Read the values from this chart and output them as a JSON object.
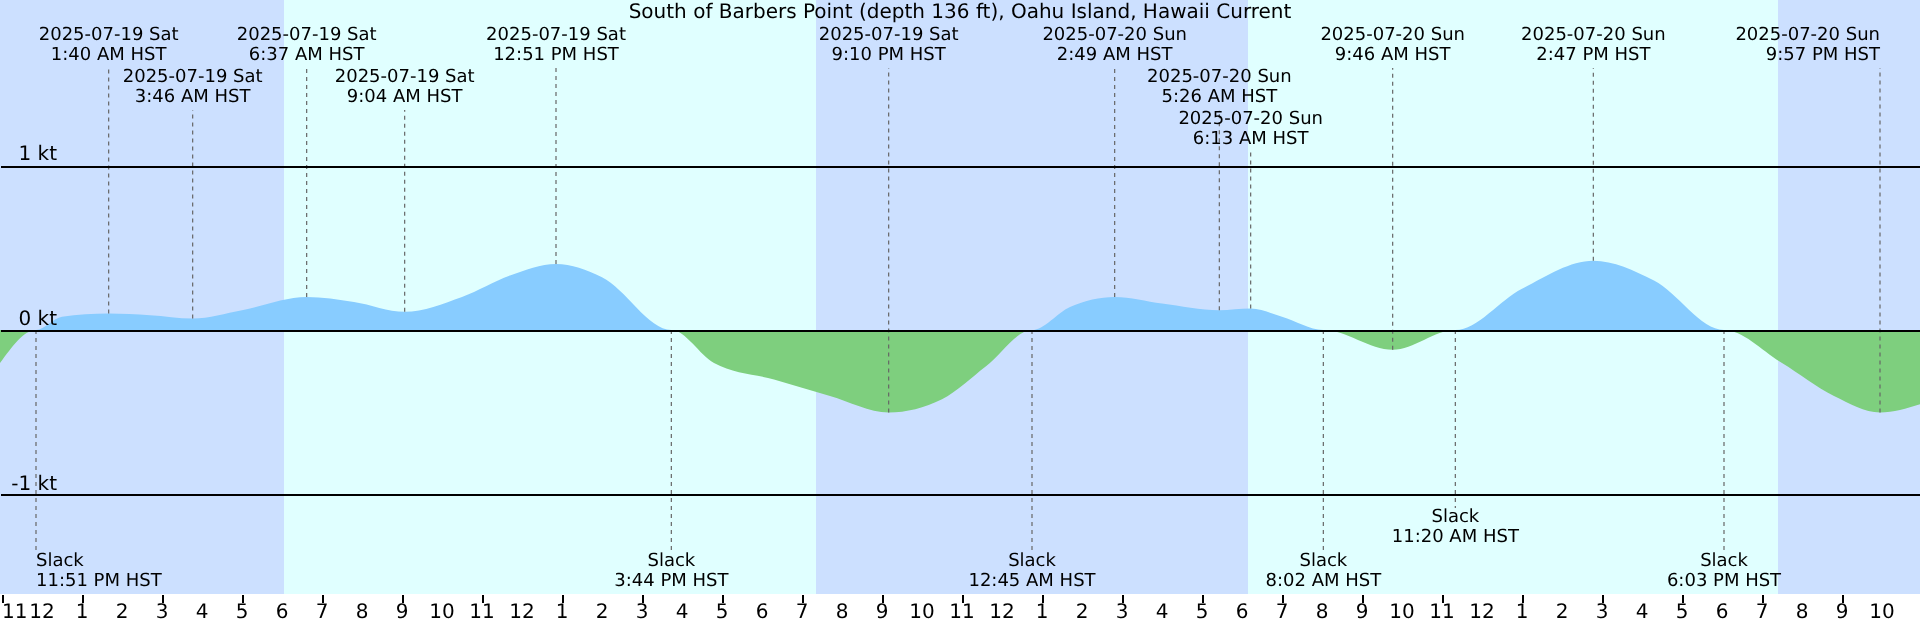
{
  "chart_data": {
    "type": "area",
    "title": "South of Barbers Point (depth 136 ft), Oahu Island, Hawaii Current",
    "x": [
      "2025-07-18T22:57",
      "2025-07-18T23:51",
      "2025-07-19T00:30",
      "2025-07-19T01:40",
      "2025-07-19T02:42",
      "2025-07-19T03:46",
      "2025-07-19T05:00",
      "2025-07-19T06:37",
      "2025-07-19T07:48",
      "2025-07-19T09:04",
      "2025-07-19T10:30",
      "2025-07-19T11:42",
      "2025-07-19T12:51",
      "2025-07-19T14:00",
      "2025-07-19T15:44",
      "2025-07-19T16:48",
      "2025-07-19T18:18",
      "2025-07-19T19:42",
      "2025-07-19T21:10",
      "2025-07-19T22:30",
      "2025-07-19T23:36",
      "2025-07-20T00:45",
      "2025-07-20T01:42",
      "2025-07-20T02:49",
      "2025-07-20T04:00",
      "2025-07-20T05:26",
      "2025-07-20T06:13",
      "2025-07-20T07:00",
      "2025-07-20T08:02",
      "2025-07-20T09:46",
      "2025-07-20T11:20",
      "2025-07-20T13:00",
      "2025-07-20T14:47",
      "2025-07-20T16:18",
      "2025-07-20T18:03",
      "2025-07-20T19:30",
      "2025-07-20T20:48",
      "2025-07-20T21:57",
      "2025-07-20T22:57"
    ],
    "series": [
      {
        "color": "#88ccff",
        "values": [
          0,
          0,
          0.08,
          0.1,
          0.09,
          0.07,
          0.12,
          0.2,
          0.17,
          0.11,
          0.2,
          0.33,
          0.4,
          0.32,
          0,
          0,
          0,
          0,
          0,
          0,
          0,
          0,
          0.14,
          0.2,
          0.16,
          0.12,
          0.13,
          0.08,
          0,
          0,
          0,
          0.25,
          0.42,
          0.3,
          0,
          0,
          0,
          0,
          0
        ]
      },
      {
        "color": "#7ecf7e",
        "values": [
          -0.2,
          0,
          0,
          0,
          0,
          0,
          0,
          0,
          0,
          0,
          0,
          0,
          0,
          0,
          0,
          -0.2,
          -0.3,
          -0.4,
          -0.5,
          -0.42,
          -0.22,
          0,
          0,
          0,
          0,
          0,
          0,
          0,
          0,
          -0.12,
          0,
          0,
          0,
          0,
          0,
          -0.2,
          -0.4,
          -0.5,
          -0.45
        ]
      }
    ],
    "xlim": [
      "2025-07-18T22:57",
      "2025-07-20T22:57"
    ],
    "ylim": [
      -1.6,
      2.0
    ],
    "yticks": [
      {
        "value": -1,
        "label": "-1 kt"
      },
      {
        "value": 0,
        "label": "0 kt"
      },
      {
        "value": 1,
        "label": "1 kt"
      }
    ],
    "xticks": [
      {
        "value": "2025-07-18T23:00",
        "label": "11"
      },
      {
        "value": "2025-07-19T00:00",
        "label": "12"
      },
      {
        "value": "2025-07-19T01:00",
        "label": "1"
      },
      {
        "value": "2025-07-19T02:00",
        "label": "2"
      },
      {
        "value": "2025-07-19T03:00",
        "label": "3"
      },
      {
        "value": "2025-07-19T04:00",
        "label": "4"
      },
      {
        "value": "2025-07-19T05:00",
        "label": "5"
      },
      {
        "value": "2025-07-19T06:00",
        "label": "6"
      },
      {
        "value": "2025-07-19T07:00",
        "label": "7"
      },
      {
        "value": "2025-07-19T08:00",
        "label": "8"
      },
      {
        "value": "2025-07-19T09:00",
        "label": "9"
      },
      {
        "value": "2025-07-19T10:00",
        "label": "10"
      },
      {
        "value": "2025-07-19T11:00",
        "label": "11"
      },
      {
        "value": "2025-07-19T12:00",
        "label": "12"
      },
      {
        "value": "2025-07-19T13:00",
        "label": "1"
      },
      {
        "value": "2025-07-19T14:00",
        "label": "2"
      },
      {
        "value": "2025-07-19T15:00",
        "label": "3"
      },
      {
        "value": "2025-07-19T16:00",
        "label": "4"
      },
      {
        "value": "2025-07-19T17:00",
        "label": "5"
      },
      {
        "value": "2025-07-19T18:00",
        "label": "6"
      },
      {
        "value": "2025-07-19T19:00",
        "label": "7"
      },
      {
        "value": "2025-07-19T20:00",
        "label": "8"
      },
      {
        "value": "2025-07-19T21:00",
        "label": "9"
      },
      {
        "value": "2025-07-19T22:00",
        "label": "10"
      },
      {
        "value": "2025-07-19T23:00",
        "label": "11"
      },
      {
        "value": "2025-07-20T00:00",
        "label": "12"
      },
      {
        "value": "2025-07-20T01:00",
        "label": "1"
      },
      {
        "value": "2025-07-20T02:00",
        "label": "2"
      },
      {
        "value": "2025-07-20T03:00",
        "label": "3"
      },
      {
        "value": "2025-07-20T04:00",
        "label": "4"
      },
      {
        "value": "2025-07-20T05:00",
        "label": "5"
      },
      {
        "value": "2025-07-20T06:00",
        "label": "6"
      },
      {
        "value": "2025-07-20T07:00",
        "label": "7"
      },
      {
        "value": "2025-07-20T08:00",
        "label": "8"
      },
      {
        "value": "2025-07-20T09:00",
        "label": "9"
      },
      {
        "value": "2025-07-20T10:00",
        "label": "10"
      },
      {
        "value": "2025-07-20T11:00",
        "label": "11"
      },
      {
        "value": "2025-07-20T12:00",
        "label": "12"
      },
      {
        "value": "2025-07-20T13:00",
        "label": "1"
      },
      {
        "value": "2025-07-20T14:00",
        "label": "2"
      },
      {
        "value": "2025-07-20T15:00",
        "label": "3"
      },
      {
        "value": "2025-07-20T16:00",
        "label": "4"
      },
      {
        "value": "2025-07-20T17:00",
        "label": "5"
      },
      {
        "value": "2025-07-20T18:00",
        "label": "6"
      },
      {
        "value": "2025-07-20T19:00",
        "label": "7"
      },
      {
        "value": "2025-07-20T20:00",
        "label": "8"
      },
      {
        "value": "2025-07-20T21:00",
        "label": "9"
      },
      {
        "value": "2025-07-20T22:00",
        "label": "10"
      }
    ],
    "bands": [
      {
        "axis": "x",
        "from": "2025-07-18T22:57",
        "to": "2025-07-19T06:03",
        "color": "#cce0ff"
      },
      {
        "axis": "x",
        "from": "2025-07-19T19:21",
        "to": "2025-07-20T06:09",
        "color": "#cce0ff"
      },
      {
        "axis": "x",
        "from": "2025-07-20T19:24",
        "to": "2025-07-20T22:57",
        "color": "#cce0ff"
      }
    ],
    "grid": "y",
    "annotations": [
      {
        "text": "2025-07-19 Sat\n1:40 AM HST",
        "x": "2025-07-19T01:40",
        "y": 0.1
      },
      {
        "text": "2025-07-19 Sat\n3:46 AM HST",
        "x": "2025-07-19T03:46",
        "y": 0.07
      },
      {
        "text": "2025-07-19 Sat\n6:37 AM HST",
        "x": "2025-07-19T06:37",
        "y": 0.2
      },
      {
        "text": "2025-07-19 Sat\n9:04 AM HST",
        "x": "2025-07-19T09:04",
        "y": 0.11
      },
      {
        "text": "2025-07-19 Sat\n12:51 PM HST",
        "x": "2025-07-19T12:51",
        "y": 0.4
      },
      {
        "text": "2025-07-19 Sat\n9:10 PM HST",
        "x": "2025-07-19T21:10",
        "y": -0.5
      },
      {
        "text": "2025-07-20 Sun\n2:49 AM HST",
        "x": "2025-07-20T02:49",
        "y": 0.2
      },
      {
        "text": "2025-07-20 Sun\n5:26 AM HST",
        "x": "2025-07-20T05:26",
        "y": 0.12
      },
      {
        "text": "2025-07-20 Sun\n6:13 AM HST",
        "x": "2025-07-20T06:13",
        "y": 0.13
      },
      {
        "text": "2025-07-20 Sun\n9:46 AM HST",
        "x": "2025-07-20T09:46",
        "y": -0.12
      },
      {
        "text": "2025-07-20 Sun\n2:47 PM HST",
        "x": "2025-07-20T14:47",
        "y": 0.42
      },
      {
        "text": "2025-07-20 Sun\n9:57 PM HST",
        "x": "2025-07-20T21:57",
        "y": -0.5
      },
      {
        "text": "Slack\n11:51 PM HST",
        "x": "2025-07-18T23:51",
        "y": 0
      },
      {
        "text": "Slack\n3:44 PM HST",
        "x": "2025-07-19T15:44",
        "y": 0
      },
      {
        "text": "Slack\n12:45 AM HST",
        "x": "2025-07-20T00:45",
        "y": 0
      },
      {
        "text": "Slack\n8:02 AM HST",
        "x": "2025-07-20T08:02",
        "y": 0
      },
      {
        "text": "Slack\n11:20 AM HST",
        "x": "2025-07-20T11:20",
        "y": 0
      },
      {
        "text": "Slack\n6:03 PM HST",
        "x": "2025-07-20T18:03",
        "y": 0
      }
    ]
  }
}
